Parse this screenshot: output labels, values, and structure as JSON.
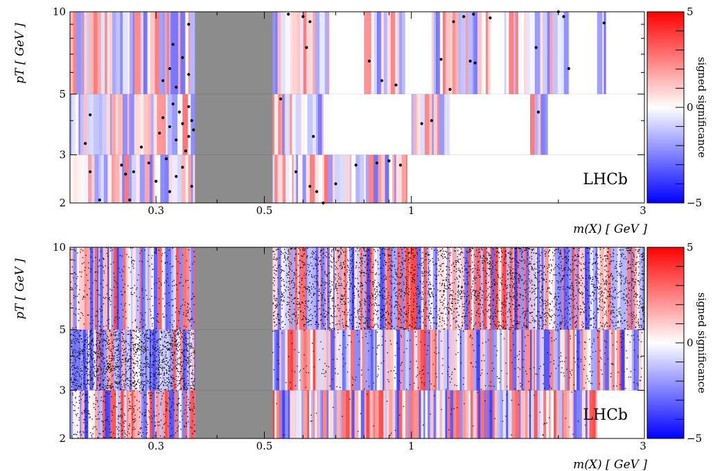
{
  "chart_data": [
    {
      "type": "heatmap",
      "panel": "top",
      "watermark": "LHCb",
      "xlabel": "m(X) [ GeV ]",
      "ylabel": "pT [ GeV ]",
      "x_scale": "log",
      "y_scale": "log",
      "xlim": [
        0.2,
        3
      ],
      "ylim": [
        2,
        10
      ],
      "xticks": [
        {
          "value": 0.3,
          "label": "0.3"
        },
        {
          "value": 0.5,
          "label": "0.5"
        },
        {
          "value": 1,
          "label": "1"
        },
        {
          "value": 3,
          "label": "3"
        }
      ],
      "yticks": [
        {
          "value": 2,
          "label": "2"
        },
        {
          "value": 3,
          "label": "3"
        },
        {
          "value": 5,
          "label": "5"
        },
        {
          "value": 10,
          "label": "10"
        }
      ],
      "pt_bins": [
        [
          2,
          3
        ],
        [
          3,
          5
        ],
        [
          5,
          10
        ]
      ],
      "excluded_region": {
        "x": [
          0.36,
          0.52
        ],
        "color": "#8c8c8c"
      },
      "colorbar": {
        "label": "signed significance",
        "range": [
          -5,
          5
        ],
        "ticks": [
          {
            "value": 5,
            "label": "5"
          },
          {
            "value": 0,
            "label": "0"
          },
          {
            "value": -5,
            "label": "−5"
          }
        ],
        "colors": [
          "#0000ff",
          "#ffffff",
          "#ff0000"
        ]
      },
      "coverage": [
        {
          "pt": [
            2,
            3
          ],
          "x": [
            0.2,
            0.36
          ]
        },
        {
          "pt": [
            2,
            3
          ],
          "x": [
            0.52,
            0.98
          ]
        },
        {
          "pt": [
            3,
            5
          ],
          "x": [
            0.2,
            0.36
          ]
        },
        {
          "pt": [
            3,
            5
          ],
          "x": [
            0.52,
            0.66
          ]
        },
        {
          "pt": [
            3,
            5
          ],
          "x": [
            1.0,
            1.2
          ]
        },
        {
          "pt": [
            3,
            5
          ],
          "x": [
            1.75,
            1.9
          ]
        },
        {
          "pt": [
            5,
            10
          ],
          "x": [
            0.2,
            0.36
          ]
        },
        {
          "pt": [
            5,
            10
          ],
          "x": [
            0.52,
            0.68
          ]
        },
        {
          "pt": [
            5,
            10
          ],
          "x": [
            0.8,
            0.97
          ]
        },
        {
          "pt": [
            5,
            10
          ],
          "x": [
            1.1,
            1.45
          ]
        },
        {
          "pt": [
            5,
            10
          ],
          "x": [
            1.55,
            1.68
          ]
        },
        {
          "pt": [
            5,
            10
          ],
          "x": [
            1.7,
            2.1
          ]
        },
        {
          "pt": [
            5,
            10
          ],
          "x": [
            2.4,
            2.5
          ]
        }
      ],
      "candidates": [
        {
          "x": 0.22,
          "y": 4.2
        },
        {
          "x": 0.215,
          "y": 3.3
        },
        {
          "x": 0.22,
          "y": 2.6
        },
        {
          "x": 0.23,
          "y": 2.05
        },
        {
          "x": 0.255,
          "y": 2.75
        },
        {
          "x": 0.26,
          "y": 2.55
        },
        {
          "x": 0.265,
          "y": 2.05
        },
        {
          "x": 0.27,
          "y": 2.6
        },
        {
          "x": 0.28,
          "y": 3.2
        },
        {
          "x": 0.29,
          "y": 2.8
        },
        {
          "x": 0.3,
          "y": 2.4
        },
        {
          "x": 0.305,
          "y": 3.6
        },
        {
          "x": 0.31,
          "y": 4.1
        },
        {
          "x": 0.315,
          "y": 2.9
        },
        {
          "x": 0.32,
          "y": 3.8
        },
        {
          "x": 0.32,
          "y": 2.2
        },
        {
          "x": 0.325,
          "y": 4.6
        },
        {
          "x": 0.33,
          "y": 3.4
        },
        {
          "x": 0.33,
          "y": 2.5
        },
        {
          "x": 0.335,
          "y": 4.3
        },
        {
          "x": 0.34,
          "y": 3.9
        },
        {
          "x": 0.34,
          "y": 2.7
        },
        {
          "x": 0.345,
          "y": 3.1
        },
        {
          "x": 0.35,
          "y": 4.5
        },
        {
          "x": 0.35,
          "y": 3.5
        },
        {
          "x": 0.355,
          "y": 2.3
        },
        {
          "x": 0.355,
          "y": 4.0
        },
        {
          "x": 0.358,
          "y": 3.7
        },
        {
          "x": 0.31,
          "y": 5.6
        },
        {
          "x": 0.32,
          "y": 6.2
        },
        {
          "x": 0.33,
          "y": 5.3
        },
        {
          "x": 0.34,
          "y": 6.8
        },
        {
          "x": 0.35,
          "y": 5.9
        },
        {
          "x": 0.35,
          "y": 9.0
        },
        {
          "x": 0.325,
          "y": 7.6
        },
        {
          "x": 0.54,
          "y": 4.8
        },
        {
          "x": 0.56,
          "y": 9.8
        },
        {
          "x": 0.58,
          "y": 2.6
        },
        {
          "x": 0.6,
          "y": 9.6
        },
        {
          "x": 0.61,
          "y": 7.4
        },
        {
          "x": 0.62,
          "y": 9.2
        },
        {
          "x": 0.62,
          "y": 2.3
        },
        {
          "x": 0.63,
          "y": 3.5
        },
        {
          "x": 0.64,
          "y": 2.2
        },
        {
          "x": 0.66,
          "y": 2.0
        },
        {
          "x": 0.7,
          "y": 2.35
        },
        {
          "x": 0.77,
          "y": 2.75
        },
        {
          "x": 0.82,
          "y": 6.6
        },
        {
          "x": 0.85,
          "y": 2.8
        },
        {
          "x": 0.87,
          "y": 5.6
        },
        {
          "x": 0.9,
          "y": 2.85
        },
        {
          "x": 0.93,
          "y": 5.4
        },
        {
          "x": 0.95,
          "y": 2.75
        },
        {
          "x": 1.05,
          "y": 3.9
        },
        {
          "x": 1.1,
          "y": 4.0
        },
        {
          "x": 1.15,
          "y": 6.7
        },
        {
          "x": 1.2,
          "y": 5.2
        },
        {
          "x": 1.22,
          "y": 9.2
        },
        {
          "x": 1.28,
          "y": 9.6
        },
        {
          "x": 1.32,
          "y": 6.6
        },
        {
          "x": 1.34,
          "y": 9.8
        },
        {
          "x": 1.35,
          "y": 6.5
        },
        {
          "x": 1.45,
          "y": 9.5
        },
        {
          "x": 1.8,
          "y": 7.4
        },
        {
          "x": 1.82,
          "y": 4.3
        },
        {
          "x": 2.0,
          "y": 10.0
        },
        {
          "x": 2.05,
          "y": 9.6
        },
        {
          "x": 2.1,
          "y": 6.2
        },
        {
          "x": 2.48,
          "y": 9.1
        }
      ]
    },
    {
      "type": "heatmap",
      "panel": "bottom",
      "watermark": "LHCb",
      "xlabel": "m(X) [ GeV ]",
      "ylabel": "pT [ GeV ]",
      "x_scale": "log",
      "y_scale": "log",
      "xlim": [
        0.2,
        3
      ],
      "ylim": [
        2,
        10
      ],
      "xticks": [
        {
          "value": 0.3,
          "label": "0.3"
        },
        {
          "value": 0.5,
          "label": "0.5"
        },
        {
          "value": 1,
          "label": "1"
        },
        {
          "value": 3,
          "label": "3"
        }
      ],
      "yticks": [
        {
          "value": 2,
          "label": "2"
        },
        {
          "value": 3,
          "label": "3"
        },
        {
          "value": 5,
          "label": "5"
        },
        {
          "value": 10,
          "label": "10"
        }
      ],
      "pt_bins": [
        [
          2,
          3
        ],
        [
          3,
          5
        ],
        [
          5,
          10
        ]
      ],
      "excluded_region": {
        "x": [
          0.36,
          0.52
        ],
        "color": "#8c8c8c"
      },
      "colorbar": {
        "label": "signed significance",
        "range": [
          -5,
          5
        ],
        "ticks": [
          {
            "value": 5,
            "label": "5"
          },
          {
            "value": 0,
            "label": "0"
          },
          {
            "value": -5,
            "label": "−5"
          }
        ],
        "colors": [
          "#0000ff",
          "#ffffff",
          "#ff0000"
        ]
      },
      "coverage": [
        {
          "pt": [
            2,
            3
          ],
          "x": [
            0.2,
            0.36
          ]
        },
        {
          "pt": [
            2,
            3
          ],
          "x": [
            0.52,
            2.4
          ]
        },
        {
          "pt": [
            3,
            5
          ],
          "x": [
            0.2,
            0.36
          ]
        },
        {
          "pt": [
            3,
            5
          ],
          "x": [
            0.52,
            3.0
          ]
        },
        {
          "pt": [
            5,
            10
          ],
          "x": [
            0.2,
            0.36
          ]
        },
        {
          "pt": [
            5,
            10
          ],
          "x": [
            0.52,
            3.0
          ]
        }
      ],
      "candidate_density": [
        {
          "pt": [
            2,
            3
          ],
          "x": [
            0.2,
            0.36
          ],
          "count": 420
        },
        {
          "pt": [
            2,
            3
          ],
          "x": [
            0.52,
            2.4
          ],
          "count": 60
        },
        {
          "pt": [
            3,
            5
          ],
          "x": [
            0.2,
            0.36
          ],
          "count": 1500
        },
        {
          "pt": [
            3,
            5
          ],
          "x": [
            0.52,
            3.0
          ],
          "count": 450
        },
        {
          "pt": [
            5,
            10
          ],
          "x": [
            0.2,
            0.36
          ],
          "count": 420
        },
        {
          "pt": [
            5,
            10
          ],
          "x": [
            0.52,
            3.0
          ],
          "count": 3600
        }
      ]
    }
  ]
}
